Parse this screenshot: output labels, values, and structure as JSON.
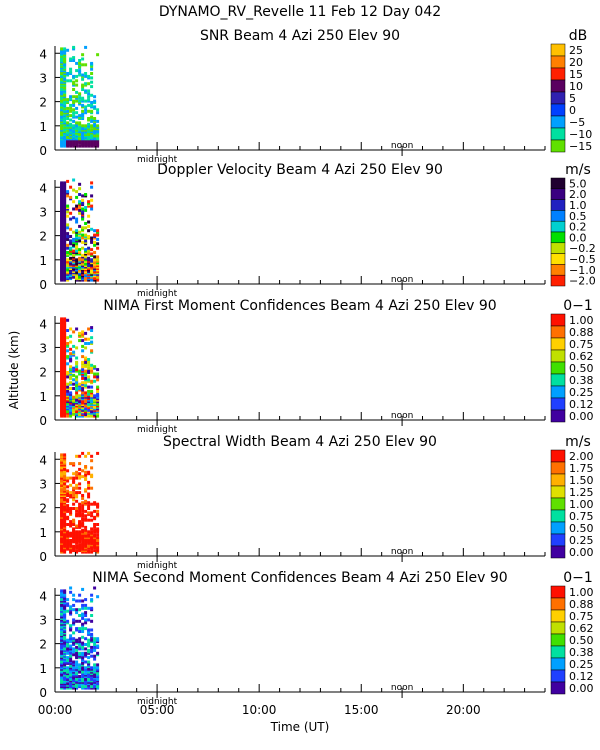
{
  "figure": {
    "title": "DYNAMO_RV_Revelle  11 Feb 12 Day 042",
    "ylabel": "Altitude (km)",
    "xlabel": "Time (UT)",
    "x_ticks": [
      "00:00",
      "05:00",
      "10:00",
      "15:00",
      "20:00"
    ],
    "marker_labels": [
      "midnight",
      "noon"
    ]
  },
  "chart_data": [
    {
      "type": "heatmap",
      "title": "SNR Beam 4 Azi 250 Elev 90",
      "unit": "dB",
      "x_range_hours": [
        0,
        24
      ],
      "ylim": [
        0,
        4.3
      ],
      "y_ticks": [
        "0",
        "1",
        "2",
        "3",
        "4"
      ],
      "colorbar": {
        "labels": [
          "25",
          "20",
          "15",
          "10",
          "5",
          "0",
          "−5",
          "−10",
          "−15"
        ],
        "colors": [
          "#ffc000",
          "#ff8000",
          "#ff2000",
          "#5a0060",
          "#3020b0",
          "#0040ff",
          "#00a0ff",
          "#00e0a0",
          "#60e000"
        ]
      },
      "data_extent_hours": [
        0.25,
        2.1
      ],
      "markers": {
        "midnight_hour": 5.0,
        "noon_hour": 17.0
      }
    },
    {
      "type": "heatmap",
      "title": "Doppler Velocity Beam 4 Azi 250 Elev 90",
      "unit": "m/s",
      "x_range_hours": [
        0,
        24
      ],
      "ylim": [
        0,
        4.3
      ],
      "y_ticks": [
        "0",
        "1",
        "2",
        "3",
        "4"
      ],
      "colorbar": {
        "labels": [
          "5.0",
          "2.0",
          "1.0",
          "0.5",
          "0.2",
          "0.0",
          "−0.2",
          "−0.5",
          "−1.0",
          "−2.0"
        ],
        "colors": [
          "#200030",
          "#3a0080",
          "#2020c0",
          "#0080ff",
          "#00d0d0",
          "#00e000",
          "#c0e000",
          "#ffe000",
          "#ff8000",
          "#ff2000"
        ]
      },
      "data_extent_hours": [
        0.25,
        2.1
      ],
      "markers": {
        "midnight_hour": 5.0,
        "noon_hour": 17.0
      }
    },
    {
      "type": "heatmap",
      "title": "NIMA First Moment Confidences Beam 4 Azi 250 Elev 90",
      "unit": "0−1",
      "x_range_hours": [
        0,
        24
      ],
      "ylim": [
        0,
        4.3
      ],
      "y_ticks": [
        "0",
        "1",
        "2",
        "3",
        "4"
      ],
      "colorbar": {
        "labels": [
          "1.00",
          "0.88",
          "0.75",
          "0.62",
          "0.50",
          "0.38",
          "0.25",
          "0.12",
          "0.00"
        ],
        "colors": [
          "#ff1000",
          "#ff7000",
          "#ffd000",
          "#c0e000",
          "#40e000",
          "#00e0a0",
          "#00a0ff",
          "#2040ff",
          "#4000a0"
        ]
      },
      "data_extent_hours": [
        0.25,
        2.1
      ],
      "markers": {
        "midnight_hour": 5.0,
        "noon_hour": 17.0
      }
    },
    {
      "type": "heatmap",
      "title": "Spectral Width Beam 4 Azi 250 Elev 90",
      "unit": "m/s",
      "x_range_hours": [
        0,
        24
      ],
      "ylim": [
        0,
        4.3
      ],
      "y_ticks": [
        "0",
        "1",
        "2",
        "3",
        "4"
      ],
      "colorbar": {
        "labels": [
          "2.00",
          "1.75",
          "1.50",
          "1.25",
          "1.00",
          "0.75",
          "0.50",
          "0.25",
          "0.00"
        ],
        "colors": [
          "#ff1000",
          "#ff7000",
          "#ffb000",
          "#e0e000",
          "#60e000",
          "#00e0a0",
          "#00a0ff",
          "#2040ff",
          "#4000a0"
        ]
      },
      "data_extent_hours": [
        0.25,
        2.1
      ],
      "markers": {
        "midnight_hour": 5.0,
        "noon_hour": 17.0
      }
    },
    {
      "type": "heatmap",
      "title": "NIMA Second Moment Confidences Beam 4 Azi 250 Elev 90",
      "unit": "0−1",
      "x_range_hours": [
        0,
        24
      ],
      "ylim": [
        0,
        4.3
      ],
      "y_ticks": [
        "0",
        "1",
        "2",
        "3",
        "4"
      ],
      "colorbar": {
        "labels": [
          "1.00",
          "0.88",
          "0.75",
          "0.62",
          "0.50",
          "0.38",
          "0.25",
          "0.12",
          "0.00"
        ],
        "colors": [
          "#ff1000",
          "#ff7000",
          "#ffd000",
          "#c0e000",
          "#40e000",
          "#00e0a0",
          "#00a0ff",
          "#2040ff",
          "#4000a0"
        ]
      },
      "data_extent_hours": [
        0.25,
        2.1
      ],
      "markers": {
        "midnight_hour": 5.0,
        "noon_hour": 17.0
      }
    }
  ]
}
